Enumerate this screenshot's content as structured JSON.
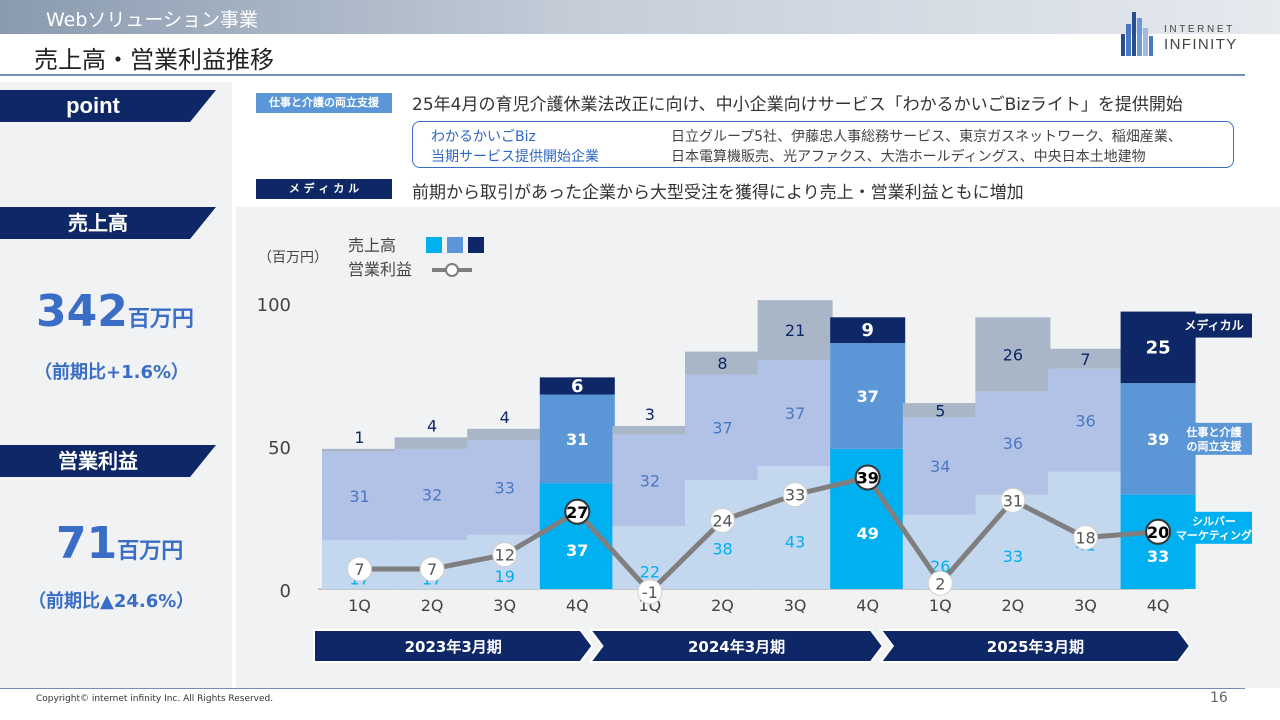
{
  "header": {
    "section": "Webソリューション事業",
    "title": "売上高・営業利益推移",
    "logo_line1": "INTERNET",
    "logo_line2": "INFINITY"
  },
  "side": {
    "point_label": "point",
    "sales_label": "売上高",
    "sales_value": "342",
    "sales_unit": "百万円",
    "sales_ratio": "（前期比+1.6%）",
    "op_label": "営業利益",
    "op_value": "71",
    "op_unit": "百万円",
    "op_ratio": "（前期比▲24.6%）"
  },
  "points": {
    "cat1": "仕事と介護の両立支援",
    "text1": "25年4月の育児介護休業法改正に向け、中小企業向けサービス「わかるかいごBizライト」を提供開始",
    "box_label1": "わかるかいごBiz",
    "box_label2": "当期サービス提供開始企業",
    "box_text1": "日立グループ5社、伊藤忠人事総務サービス、東京ガスネットワーク、稲畑産業、",
    "box_text2": "日本電算機販売、光アファクス、大浩ホールディングス、中央日本土地建物",
    "cat2": "メ デ ィ カ ル",
    "text2": "前期から取引があった企業から大型受注を獲得により売上・営業利益ともに増加"
  },
  "colors": {
    "navy": "#0e2766",
    "accent_blue": "#3a6ec6",
    "tag_blue": "#5b97d6",
    "silver_highlight": "#00b0f0",
    "care_highlight": "#5b97d6",
    "medical_highlight": "#0e2766",
    "silver_muted": "#c3d7ee",
    "care_muted": "#b2c2e6",
    "medical_muted": "#a9b6c8",
    "line": "#7f7f7f"
  },
  "chart_data": {
    "type": "bar",
    "unit_label": "（百万円）",
    "legend": {
      "bar_label": "売上高",
      "line_label": "営業利益"
    },
    "categories": [
      "1Q",
      "2Q",
      "3Q",
      "4Q",
      "1Q",
      "2Q",
      "3Q",
      "4Q",
      "1Q",
      "2Q",
      "3Q",
      "4Q"
    ],
    "periods": [
      {
        "label": "2023年3月期",
        "start": 0,
        "end": 3
      },
      {
        "label": "2024年3月期",
        "start": 4,
        "end": 7
      },
      {
        "label": "2025年3月期",
        "start": 8,
        "end": 11
      }
    ],
    "series": [
      {
        "name": "シルバーマーケティング",
        "values": [
          17,
          17,
          19,
          37,
          22,
          38,
          43,
          49,
          26,
          33,
          41,
          33
        ]
      },
      {
        "name": "仕事と介護の両立支援",
        "values": [
          31,
          32,
          33,
          31,
          32,
          37,
          37,
          37,
          34,
          36,
          36,
          39
        ]
      },
      {
        "name": "メディカル",
        "values": [
          1,
          4,
          4,
          6,
          3,
          8,
          21,
          9,
          5,
          26,
          7,
          25
        ]
      }
    ],
    "series_labels": [
      "シルバー\nマーケティング",
      "仕事と介護\nの両立支援",
      "メディカル"
    ],
    "highlight_quarters": [
      3,
      7,
      11
    ],
    "operating_profit": [
      7,
      7,
      12,
      27,
      -1,
      24,
      33,
      39,
      2,
      31,
      18,
      20
    ],
    "yticks": [
      0,
      50,
      100
    ],
    "ylim": [
      0,
      100
    ]
  },
  "footer": {
    "copyright": "Copyright© internet infinity Inc. All Rights Reserved.",
    "page": "16"
  }
}
